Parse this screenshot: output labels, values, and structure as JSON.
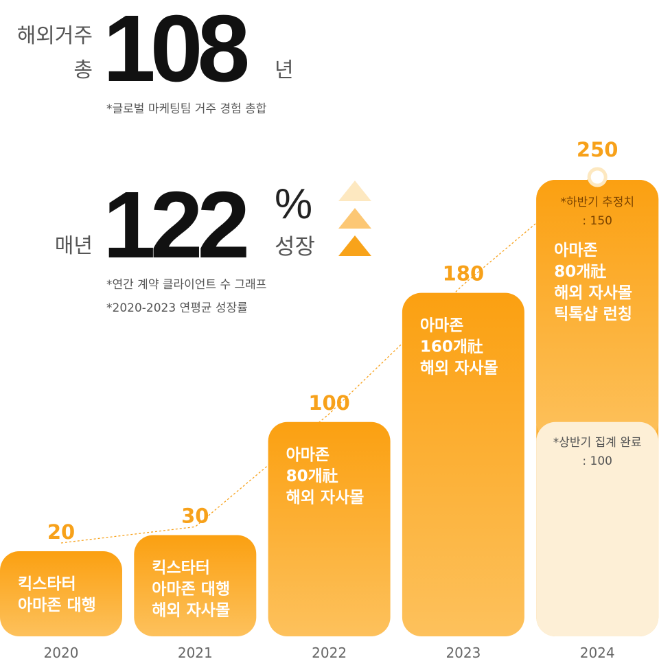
{
  "header": {
    "stay": {
      "label_top": "해외거주",
      "label_bottom": "총",
      "number": 108,
      "unit": "년",
      "note": "*글로벌 마케팅팀 거주 경험 총합"
    },
    "growth": {
      "label": "매년",
      "number": 122,
      "unit": "%",
      "word": "성장",
      "notes": [
        "*연간 계약 클라이언트 수 그래프",
        "*2020-2023 연평균 성장률"
      ]
    }
  },
  "chart_data": {
    "type": "bar",
    "categories": [
      "2020",
      "2021",
      "2022",
      "2023",
      "2024"
    ],
    "values": [
      20,
      30,
      100,
      180,
      250
    ],
    "color": "#fba314",
    "label_color": "#f7a11a",
    "bar_texts": [
      [
        "킥스타터",
        "아마존 대행"
      ],
      [
        "킥스타터",
        "아마존 대행",
        "해외 자사몰"
      ],
      [
        "아마존",
        "80개社",
        "해외 자사몰"
      ],
      [
        "아마존",
        "160개社",
        "해외 자사몰"
      ],
      [
        "아마존",
        "80개社",
        "해외 자사몰",
        "틱톡샵 런칭"
      ]
    ],
    "split": {
      "names": [
        "*상반기 집계 완료",
        "*하반기 추정치"
      ],
      "values": [
        100,
        150
      ],
      "value_labels": [
        ": 100",
        ": 150"
      ],
      "colors": [
        "#fdefd6",
        "#fba314"
      ]
    }
  }
}
